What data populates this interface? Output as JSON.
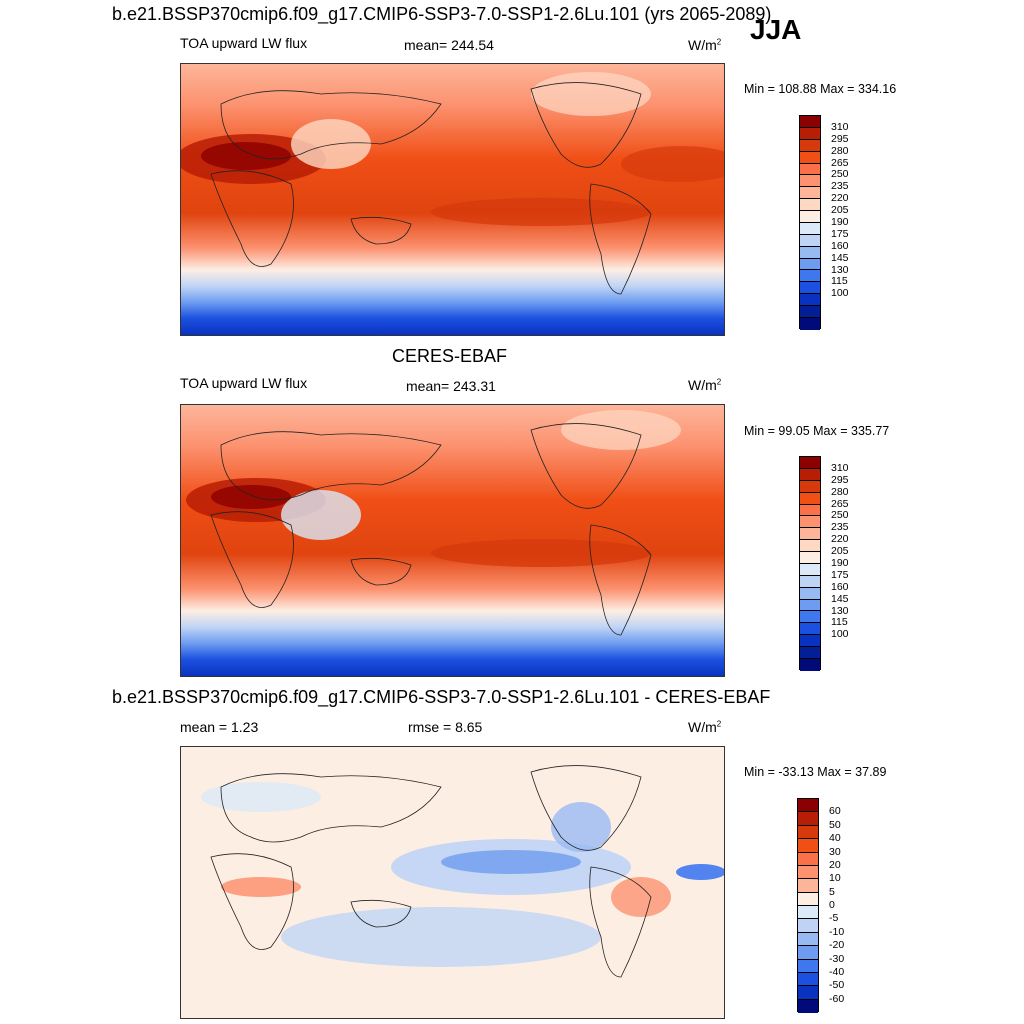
{
  "header": {
    "title": "b.e21.BSSP370cmip6.f09_g17.CMIP6-SSP3-7.0-SSP1-2.6Lu.101 (yrs 2065-2089)",
    "season": "JJA"
  },
  "panels": [
    {
      "variable": "TOA upward LW flux",
      "stat": "mean= 244.54",
      "units": "W/m",
      "units_sup": "2",
      "minmax": "Min = 108.88 Max = 334.16"
    },
    {
      "heading": "CERES-EBAF",
      "variable": "TOA upward LW flux",
      "stat": "mean= 243.31",
      "units": "W/m",
      "units_sup": "2",
      "minmax": "Min =  99.05 Max = 335.77"
    },
    {
      "heading": "b.e21.BSSP370cmip6.f09_g17.CMIP6-SSP3-7.0-SSP1-2.6Lu.101 - CERES-EBAF",
      "mean_label": "mean =   1.23",
      "rmse_label": "rmse =   8.65",
      "units": "W/m",
      "units_sup": "2",
      "minmax": "Min = -33.13 Max =  37.89"
    }
  ],
  "colorbar_abs": {
    "colors": [
      "#8b0000",
      "#b81d05",
      "#d63a0c",
      "#f04f16",
      "#fa7048",
      "#fc9270",
      "#fdb59a",
      "#fdd9c4",
      "#fdeee4",
      "#dbe9f8",
      "#bfd4f5",
      "#98baf2",
      "#6d9cf0",
      "#3f77ee",
      "#1b50e0",
      "#0a32c0",
      "#041f96",
      "#000a78"
    ],
    "labels": [
      "310",
      "295",
      "280",
      "265",
      "250",
      "235",
      "220",
      "205",
      "190",
      "175",
      "160",
      "145",
      "130",
      "115",
      "100"
    ]
  },
  "colorbar_diff": {
    "colors": [
      "#8b0000",
      "#b81d05",
      "#d63a0c",
      "#f04f16",
      "#fa7048",
      "#fc9270",
      "#fdb59a",
      "#fdeee4",
      "#dbe9f8",
      "#bfd4f5",
      "#98baf2",
      "#6d9cf0",
      "#3f77ee",
      "#1b50e0",
      "#0a32c0",
      "#000a78"
    ],
    "labels": [
      "60",
      "50",
      "40",
      "30",
      "20",
      "10",
      "5",
      "0",
      "-5",
      "-10",
      "-20",
      "-30",
      "-40",
      "-50",
      "-60"
    ]
  }
}
